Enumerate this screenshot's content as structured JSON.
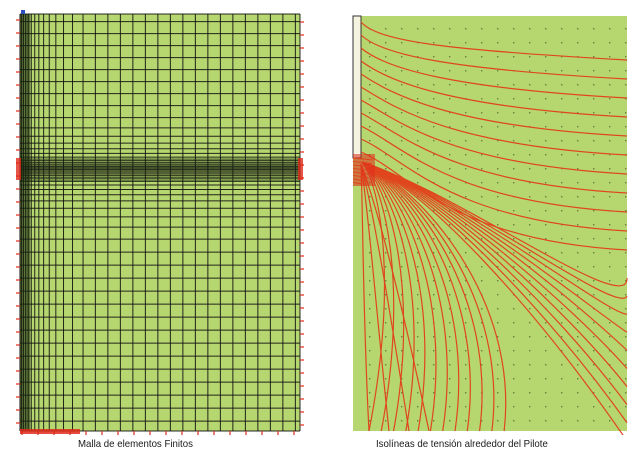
{
  "figure": {
    "left_panel": {
      "caption": "Malla de elementos Finitos"
    },
    "right_panel": {
      "caption": "Isolíneas de tensión alrededor del Pilote"
    }
  },
  "colors": {
    "soil_fill": "#b6d770",
    "mesh_line": "#111111",
    "iso_line": "#e0461e",
    "support_marker": "#e02a1a",
    "pile_fill": "#f4f4e0",
    "node_dot": "#4a5a2a",
    "axis_marker": "#3050c0"
  }
}
